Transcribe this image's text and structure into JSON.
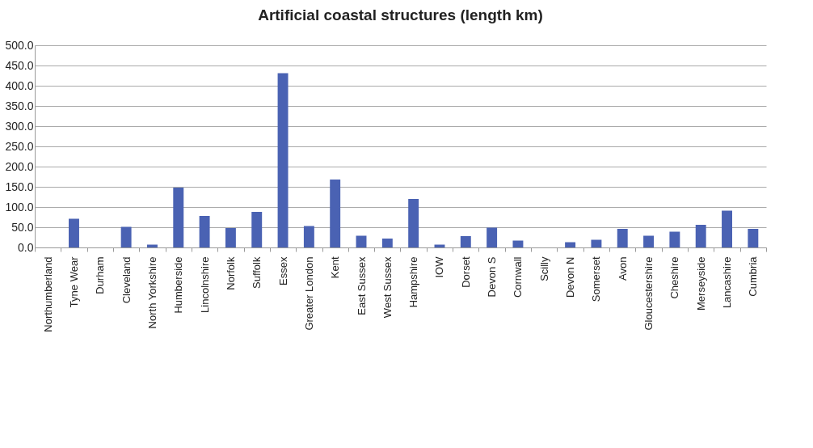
{
  "chart_data": {
    "type": "bar",
    "title": "Artificial coastal structures (length km)",
    "categories": [
      "Northumberland",
      "Tyne Wear",
      "Durham",
      "Cleveland",
      "North Yorkshire",
      "Humberside",
      "Lincolnshire",
      "Norfolk",
      "Suffolk",
      "Essex",
      "Greater London",
      "Kent",
      "East Sussex",
      "West Sussex",
      "Hampshire",
      "IOW",
      "Dorset",
      "Devon S",
      "Cornwall",
      "Scilly",
      "Devon N",
      "Somerset",
      "Avon",
      "Gloucestershire",
      "Cheshire",
      "Merseyside",
      "Lancashire",
      "Cumbria"
    ],
    "values": [
      0,
      71,
      0,
      51,
      7,
      148,
      78,
      48,
      88,
      431,
      53,
      168,
      29,
      22,
      120,
      7,
      28,
      49,
      17,
      0,
      13,
      19,
      46,
      29,
      39,
      56,
      91,
      46
    ],
    "color": "#4a62b3",
    "ylim": [
      0,
      500
    ],
    "yticks": [
      {
        "value": 0,
        "label": "0.0"
      },
      {
        "value": 50,
        "label": "50.0"
      },
      {
        "value": 100,
        "label": "100.0"
      },
      {
        "value": 150,
        "label": "150.0"
      },
      {
        "value": 200,
        "label": "200.0"
      },
      {
        "value": 250,
        "label": "250.0"
      },
      {
        "value": 300,
        "label": "300.0"
      },
      {
        "value": 350,
        "label": "350.0"
      },
      {
        "value": 400,
        "label": "400.0"
      },
      {
        "value": 450,
        "label": "450.0"
      },
      {
        "value": 500,
        "label": "500.0"
      }
    ],
    "grid": "y"
  }
}
